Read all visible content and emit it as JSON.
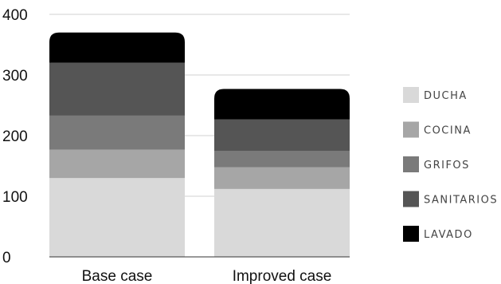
{
  "chart_data": {
    "type": "bar",
    "stacked": true,
    "categories": [
      "Base case",
      "Improved case"
    ],
    "series": [
      {
        "name": "DUCHA",
        "values": [
          130,
          112
        ],
        "color": "#d9d9d9"
      },
      {
        "name": "COCINA",
        "values": [
          47,
          36
        ],
        "color": "#a6a6a6"
      },
      {
        "name": "GRIFOS",
        "values": [
          56,
          27
        ],
        "color": "#7a7a7a"
      },
      {
        "name": "SANITARIOS",
        "values": [
          87,
          52
        ],
        "color": "#555555"
      },
      {
        "name": "LAVADO",
        "values": [
          50,
          50
        ],
        "color": "#000000"
      }
    ],
    "yticks": [
      0,
      100,
      200,
      300,
      400
    ],
    "ylim": [
      0,
      400
    ],
    "title": "",
    "xlabel": "",
    "ylabel": "",
    "grid": true,
    "legend": "right"
  }
}
